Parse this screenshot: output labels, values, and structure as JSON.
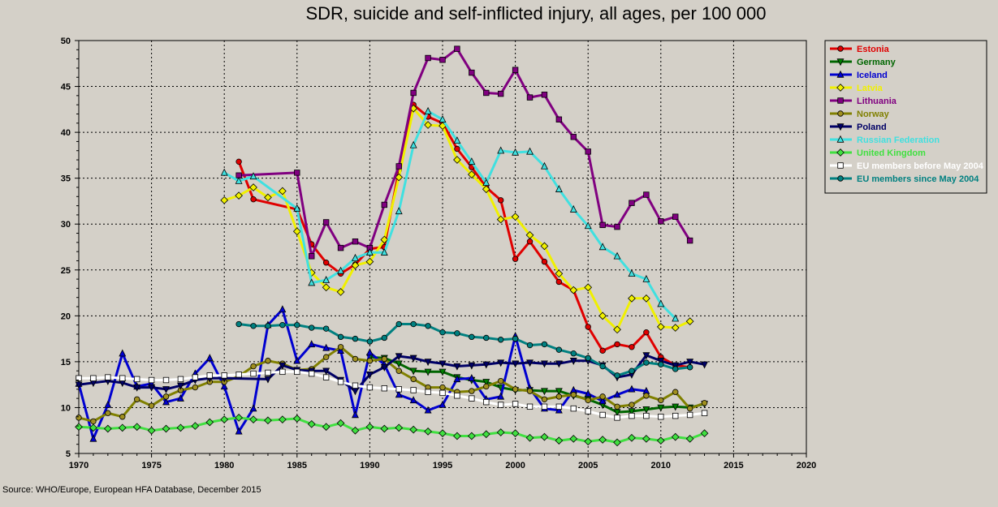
{
  "chart_data": {
    "type": "line",
    "title": "SDR, suicide and self-inflicted injury, all ages, per 100 000",
    "xlabel": "",
    "ylabel": "",
    "xlim": [
      1970,
      2020
    ],
    "ylim": [
      5,
      50
    ],
    "x_ticks": [
      1970,
      1975,
      1980,
      1985,
      1990,
      1995,
      2000,
      2005,
      2010,
      2015,
      2020
    ],
    "y_ticks": [
      5,
      10,
      15,
      20,
      25,
      30,
      35,
      40,
      45,
      50
    ],
    "grid": true,
    "legend_position": "top-right",
    "series": [
      {
        "name": "Estonia",
        "color": "#e00000",
        "marker": "circle",
        "marker_fill": "#e00000",
        "x": [
          1981,
          1982,
          1985,
          1986,
          1987,
          1988,
          1989,
          1990,
          1991,
          1992,
          1993,
          1994,
          1995,
          1996,
          1997,
          1998,
          1999,
          2000,
          2001,
          2002,
          2003,
          2004,
          2005,
          2006,
          2007,
          2008,
          2009,
          2010,
          2011,
          2012
        ],
        "y": [
          36.8,
          32.7,
          31.6,
          27.8,
          25.8,
          24.6,
          25.6,
          27.3,
          27.5,
          35.9,
          43.0,
          41.7,
          41.0,
          38.2,
          36.2,
          34.0,
          32.6,
          26.2,
          28.1,
          25.9,
          23.7,
          22.8,
          18.8,
          16.2,
          16.9,
          16.6,
          18.2,
          15.5,
          14.6,
          14.4
        ]
      },
      {
        "name": "Germany",
        "color": "#006600",
        "marker": "triangle-down",
        "marker_fill": "#008000",
        "x": [
          1990,
          1991,
          1992,
          1993,
          1994,
          1995,
          1996,
          1997,
          1998,
          1999,
          2000,
          2001,
          2002,
          2003,
          2004,
          2005,
          2006,
          2007,
          2008,
          2009,
          2010,
          2011,
          2012,
          2013
        ],
        "y": [
          15.5,
          15.4,
          14.8,
          14.0,
          13.9,
          13.9,
          13.3,
          13.0,
          12.8,
          12.2,
          11.9,
          11.9,
          11.8,
          11.8,
          11.3,
          10.9,
          10.3,
          9.5,
          9.6,
          9.8,
          10.0,
          10.1,
          10.0,
          10.4
        ]
      },
      {
        "name": "Iceland",
        "color": "#0000d0",
        "marker": "triangle-up",
        "marker_fill": "#0000d0",
        "x": [
          1970,
          1971,
          1972,
          1973,
          1974,
          1975,
          1976,
          1977,
          1978,
          1979,
          1980,
          1981,
          1982,
          1983,
          1984,
          1985,
          1986,
          1987,
          1988,
          1989,
          1990,
          1991,
          1992,
          1993,
          1994,
          1995,
          1996,
          1997,
          1998,
          1999,
          2000,
          2001,
          2002,
          2003,
          2004,
          2005,
          2006,
          2007,
          2008,
          2009
        ],
        "y": [
          12.6,
          6.6,
          10.3,
          15.9,
          12.3,
          12.6,
          10.6,
          11.0,
          13.7,
          15.4,
          12.3,
          7.4,
          9.9,
          19.0,
          20.7,
          15.1,
          16.9,
          16.5,
          16.2,
          9.2,
          16.0,
          14.7,
          11.4,
          10.8,
          9.7,
          10.3,
          13.1,
          13.2,
          10.9,
          11.2,
          17.8,
          12.1,
          9.9,
          9.7,
          11.9,
          11.5,
          10.7,
          11.4,
          12.0,
          11.8
        ]
      },
      {
        "name": "Latvia",
        "color": "#f0f000",
        "marker": "diamond",
        "marker_fill": "#f0f000",
        "x": [
          1980,
          1981,
          1982,
          1983,
          1984,
          1985,
          1986,
          1987,
          1988,
          1989,
          1990,
          1991,
          1992,
          1993,
          1994,
          1995,
          1996,
          1997,
          1998,
          1999,
          2000,
          2001,
          2002,
          2003,
          2004,
          2005,
          2006,
          2007,
          2008,
          2009,
          2010,
          2011,
          2012
        ],
        "y": [
          32.6,
          33.1,
          34.0,
          32.9,
          33.6,
          29.2,
          24.7,
          23.1,
          22.6,
          25.5,
          25.9,
          28.3,
          35.1,
          42.6,
          40.8,
          40.7,
          37.0,
          35.4,
          33.8,
          30.5,
          30.8,
          28.8,
          27.6,
          24.6,
          22.8,
          23.1,
          20.0,
          18.5,
          21.9,
          21.9,
          18.8,
          18.7,
          19.4
        ]
      },
      {
        "name": "Lithuania",
        "color": "#800080",
        "marker": "square",
        "marker_fill": "#800080",
        "x": [
          1981,
          1985,
          1986,
          1987,
          1988,
          1989,
          1990,
          1991,
          1992,
          1993,
          1994,
          1995,
          1996,
          1997,
          1998,
          1999,
          2000,
          2001,
          2002,
          2003,
          2004,
          2005,
          2006,
          2007,
          2008,
          2009,
          2010,
          2011,
          2012
        ],
        "y": [
          35.3,
          35.6,
          26.5,
          30.2,
          27.4,
          28.1,
          27.4,
          32.1,
          36.3,
          44.3,
          48.1,
          47.9,
          49.1,
          46.5,
          44.3,
          44.2,
          46.8,
          43.8,
          44.1,
          41.4,
          39.5,
          37.9,
          29.9,
          29.7,
          32.3,
          33.2,
          30.3,
          30.8,
          28.2
        ]
      },
      {
        "name": "Norway",
        "color": "#808000",
        "marker": "circle",
        "marker_fill": "#a09020",
        "x": [
          1970,
          1971,
          1972,
          1973,
          1974,
          1975,
          1976,
          1977,
          1978,
          1979,
          1980,
          1981,
          1982,
          1983,
          1984,
          1985,
          1986,
          1987,
          1988,
          1989,
          1990,
          1991,
          1992,
          1993,
          1994,
          1995,
          1996,
          1997,
          1998,
          1999,
          2000,
          2001,
          2002,
          2003,
          2004,
          2005,
          2006,
          2007,
          2008,
          2009,
          2010,
          2011,
          2012,
          2013
        ],
        "y": [
          8.9,
          8.5,
          9.4,
          9.0,
          10.9,
          10.2,
          11.2,
          11.9,
          12.2,
          12.8,
          12.8,
          13.4,
          14.5,
          15.1,
          14.8,
          14.1,
          14.2,
          15.5,
          16.6,
          15.3,
          15.1,
          15.3,
          14.0,
          13.1,
          12.2,
          12.2,
          11.7,
          11.8,
          12.3,
          12.9,
          12.0,
          11.8,
          10.9,
          11.2,
          11.4,
          10.8,
          11.2,
          10.1,
          10.3,
          11.3,
          10.8,
          11.7,
          9.9,
          10.5
        ]
      },
      {
        "name": "Poland",
        "color": "#000066",
        "marker": "triangle-down",
        "marker_fill": "#000066",
        "x": [
          1970,
          1971,
          1972,
          1973,
          1974,
          1975,
          1976,
          1977,
          1978,
          1979,
          1980,
          1983,
          1984,
          1985,
          1986,
          1987,
          1988,
          1989,
          1990,
          1991,
          1992,
          1993,
          1994,
          1995,
          1996,
          1997,
          1998,
          1999,
          2000,
          2001,
          2002,
          2003,
          2004,
          2005,
          2006,
          2007,
          2008,
          2009,
          2010,
          2011,
          2012,
          2013
        ],
        "y": [
          12.5,
          12.7,
          12.9,
          12.7,
          12.2,
          12.2,
          12.0,
          12.4,
          13.0,
          13.2,
          13.2,
          13.1,
          14.6,
          14.1,
          14.0,
          14.0,
          13.0,
          11.8,
          13.6,
          14.4,
          15.6,
          15.4,
          15.0,
          14.8,
          14.5,
          14.6,
          14.7,
          14.9,
          14.8,
          14.9,
          14.8,
          14.8,
          15.1,
          15.1,
          14.6,
          13.3,
          13.6,
          15.7,
          15.1,
          14.6,
          15.0,
          14.7
        ]
      },
      {
        "name": "Russian Federation",
        "color": "#40e0e0",
        "marker": "triangle-up",
        "marker_fill": "#40e0e0",
        "x": [
          1980,
          1981,
          1982,
          1985,
          1986,
          1987,
          1988,
          1989,
          1990,
          1991,
          1992,
          1993,
          1994,
          1995,
          1996,
          1997,
          1998,
          1999,
          2000,
          2001,
          2002,
          2003,
          2004,
          2005,
          2006,
          2007,
          2008,
          2009,
          2010,
          2011
        ],
        "y": [
          35.6,
          34.7,
          35.2,
          31.7,
          23.6,
          23.9,
          24.9,
          26.3,
          26.9,
          26.9,
          31.4,
          38.6,
          42.3,
          41.4,
          39.1,
          36.8,
          34.5,
          38.0,
          37.8,
          37.9,
          36.3,
          33.8,
          31.6,
          29.8,
          27.5,
          26.5,
          24.6,
          24.0,
          21.3,
          19.7
        ]
      },
      {
        "name": "United Kingdom",
        "color": "#40e040",
        "marker": "diamond",
        "marker_fill": "#40e040",
        "x": [
          1970,
          1971,
          1972,
          1973,
          1974,
          1975,
          1976,
          1977,
          1978,
          1979,
          1980,
          1981,
          1982,
          1983,
          1984,
          1985,
          1986,
          1987,
          1988,
          1989,
          1990,
          1991,
          1992,
          1993,
          1994,
          1995,
          1996,
          1997,
          1998,
          1999,
          2000,
          2001,
          2002,
          2003,
          2004,
          2005,
          2006,
          2007,
          2008,
          2009,
          2010,
          2011,
          2012,
          2013
        ],
        "y": [
          7.9,
          7.8,
          7.7,
          7.8,
          7.9,
          7.5,
          7.7,
          7.8,
          8.0,
          8.4,
          8.7,
          8.9,
          8.7,
          8.6,
          8.7,
          8.8,
          8.2,
          7.9,
          8.3,
          7.5,
          7.9,
          7.7,
          7.8,
          7.6,
          7.4,
          7.2,
          6.9,
          6.9,
          7.1,
          7.3,
          7.2,
          6.7,
          6.8,
          6.4,
          6.6,
          6.3,
          6.5,
          6.2,
          6.7,
          6.6,
          6.4,
          6.8,
          6.6,
          7.2
        ]
      },
      {
        "name": "EU members before May 2004",
        "color": "#ffffff",
        "marker": "square",
        "marker_fill": "#ffffff",
        "marker_stroke": "#000000",
        "x": [
          1970,
          1971,
          1972,
          1973,
          1974,
          1975,
          1976,
          1977,
          1978,
          1979,
          1980,
          1981,
          1982,
          1983,
          1984,
          1985,
          1986,
          1987,
          1988,
          1989,
          1990,
          1991,
          1992,
          1993,
          1994,
          1995,
          1996,
          1997,
          1998,
          1999,
          2000,
          2001,
          2002,
          2003,
          2004,
          2005,
          2006,
          2007,
          2008,
          2009,
          2010,
          2011,
          2012,
          2013
        ],
        "y": [
          13.2,
          13.2,
          13.3,
          13.2,
          13.1,
          13.0,
          13.0,
          13.1,
          13.3,
          13.5,
          13.5,
          13.6,
          13.7,
          13.8,
          13.9,
          13.9,
          13.7,
          13.3,
          12.8,
          12.4,
          12.2,
          12.1,
          12.0,
          11.9,
          11.7,
          11.6,
          11.3,
          11.0,
          10.6,
          10.3,
          10.4,
          10.1,
          10.1,
          10.1,
          9.9,
          9.6,
          9.2,
          8.9,
          9.1,
          9.1,
          9.0,
          9.1,
          9.2,
          9.4
        ]
      },
      {
        "name": "EU members since May 2004",
        "color": "#008080",
        "marker": "circle",
        "marker_fill": "#008080",
        "x": [
          1981,
          1982,
          1983,
          1984,
          1985,
          1986,
          1987,
          1988,
          1989,
          1990,
          1991,
          1992,
          1993,
          1994,
          1995,
          1996,
          1997,
          1998,
          1999,
          2000,
          2001,
          2002,
          2003,
          2004,
          2005,
          2006,
          2007,
          2008,
          2009,
          2010,
          2011,
          2012
        ],
        "y": [
          19.1,
          18.9,
          18.9,
          19.0,
          19.0,
          18.7,
          18.6,
          17.7,
          17.5,
          17.2,
          17.6,
          19.1,
          19.1,
          18.9,
          18.2,
          18.1,
          17.7,
          17.6,
          17.4,
          17.5,
          16.8,
          16.9,
          16.3,
          15.9,
          15.4,
          14.5,
          13.5,
          14.0,
          14.9,
          14.7,
          14.2,
          14.4
        ]
      }
    ]
  },
  "source": "Source: WHO/Europe, European HFA Database, December 2015"
}
